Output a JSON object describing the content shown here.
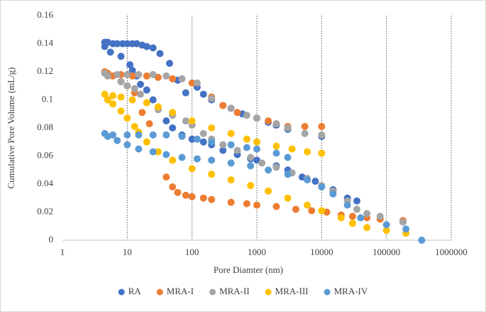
{
  "chart_data": {
    "type": "scatter",
    "x_label": "Pore Diamter (nm)",
    "y_label": "Cumulative Pore Volume (mL/g)",
    "xlim": [
      1,
      1000000
    ],
    "xticks": [
      1,
      10,
      100,
      1000,
      10000,
      100000,
      1000000
    ],
    "log_x": true,
    "xgrid": true,
    "ylim": [
      0,
      0.16
    ],
    "yticks": [
      0,
      0.02,
      0.04,
      0.06,
      0.08,
      0.1,
      0.12,
      0.14,
      0.16
    ],
    "legend": "bottom",
    "series": [
      {
        "name": "RA",
        "color": "#4472c4",
        "x": [
          4.5,
          5,
          6,
          7,
          8.5,
          10,
          12,
          14,
          17,
          20,
          25,
          32,
          45,
          60,
          80,
          120,
          150,
          200,
          300,
          400,
          600,
          1000,
          1500,
          2000,
          3000,
          10000,
          4.5,
          5.5,
          8,
          11,
          12,
          14,
          16,
          20,
          25,
          30,
          40,
          50,
          70,
          100,
          150,
          200,
          300,
          500,
          800,
          1000,
          2000,
          3000,
          5000,
          8000,
          15000,
          25000,
          35000
        ],
        "values": [
          0.141,
          0.141,
          0.14,
          0.14,
          0.14,
          0.14,
          0.14,
          0.14,
          0.139,
          0.138,
          0.137,
          0.133,
          0.126,
          0.114,
          0.105,
          0.109,
          0.104,
          0.1,
          0.096,
          0.094,
          0.09,
          0.087,
          0.084,
          0.082,
          0.079,
          0.074,
          0.138,
          0.134,
          0.131,
          0.125,
          0.121,
          0.117,
          0.111,
          0.107,
          0.1,
          0.094,
          0.085,
          0.08,
          0.075,
          0.072,
          0.07,
          0.068,
          0.064,
          0.061,
          0.058,
          0.057,
          0.053,
          0.05,
          0.045,
          0.042,
          0.036,
          0.03,
          0.028
        ]
      },
      {
        "name": "MRA-I",
        "color": "#ed7d31",
        "x": [
          4.5,
          6,
          8,
          10,
          13,
          17,
          22,
          40,
          50,
          60,
          80,
          100,
          150,
          200,
          400,
          700,
          1000,
          2000,
          4000,
          7000,
          12000,
          20000,
          30000,
          50000,
          80000,
          180000,
          5,
          8,
          12,
          20,
          30,
          50,
          100,
          200,
          300,
          500,
          1000,
          1500,
          2000,
          3000,
          5500,
          10000
        ],
        "values": [
          0.12,
          0.117,
          0.113,
          0.11,
          0.105,
          0.091,
          0.083,
          0.045,
          0.038,
          0.034,
          0.032,
          0.031,
          0.03,
          0.029,
          0.027,
          0.026,
          0.025,
          0.024,
          0.022,
          0.021,
          0.02,
          0.018,
          0.017,
          0.016,
          0.015,
          0.014,
          0.119,
          0.118,
          0.117,
          0.117,
          0.116,
          0.115,
          0.112,
          0.102,
          0.096,
          0.091,
          0.087,
          0.085,
          0.083,
          0.081,
          0.081,
          0.081
        ]
      },
      {
        "name": "MRA-II",
        "color": "#a5a5a5",
        "x": [
          4.5,
          7,
          10,
          15,
          25,
          40,
          70,
          120,
          200,
          400,
          700,
          1000,
          2000,
          3000,
          5500,
          10000,
          5,
          8,
          10,
          13,
          16,
          20,
          30,
          50,
          80,
          100,
          150,
          200,
          300,
          500,
          800,
          1200,
          2000,
          3500,
          6000,
          10000,
          15000,
          25000,
          35000,
          50000,
          80000,
          180000
        ],
        "values": [
          0.119,
          0.118,
          0.118,
          0.118,
          0.118,
          0.117,
          0.115,
          0.112,
          0.101,
          0.094,
          0.089,
          0.087,
          0.083,
          0.08,
          0.076,
          0.075,
          0.117,
          0.113,
          0.11,
          0.108,
          0.104,
          0.098,
          0.093,
          0.089,
          0.085,
          0.082,
          0.076,
          0.072,
          0.068,
          0.064,
          0.059,
          0.055,
          0.052,
          0.048,
          0.044,
          0.039,
          0.035,
          0.028,
          0.022,
          0.019,
          0.017,
          0.013
        ]
      },
      {
        "name": "MRA-III",
        "color": "#ffc000",
        "x": [
          4.5,
          6,
          8,
          12,
          20,
          30,
          50,
          100,
          200,
          400,
          700,
          1000,
          2000,
          3500,
          6000,
          10000,
          5,
          6,
          8,
          10,
          13,
          15,
          20,
          30,
          50,
          100,
          200,
          400,
          800,
          1500,
          3000,
          6000,
          10000,
          20000,
          30000,
          50000,
          100000,
          200000
        ],
        "values": [
          0.104,
          0.103,
          0.102,
          0.1,
          0.098,
          0.095,
          0.091,
          0.085,
          0.08,
          0.076,
          0.072,
          0.07,
          0.067,
          0.065,
          0.063,
          0.062,
          0.1,
          0.097,
          0.092,
          0.087,
          0.081,
          0.077,
          0.07,
          0.063,
          0.057,
          0.051,
          0.047,
          0.043,
          0.039,
          0.035,
          0.03,
          0.025,
          0.021,
          0.016,
          0.012,
          0.009,
          0.007,
          0.005
        ]
      },
      {
        "name": "MRA-IV",
        "color": "#5b9bd5",
        "x": [
          4.5,
          6,
          10,
          15,
          25,
          40,
          70,
          120,
          200,
          400,
          700,
          1000,
          2000,
          3000,
          5,
          7,
          10,
          15,
          25,
          40,
          70,
          120,
          200,
          400,
          800,
          1500,
          3000,
          6000,
          10000,
          15000,
          25000,
          40000,
          100000,
          200000,
          350000
        ],
        "values": [
          0.076,
          0.075,
          0.075,
          0.075,
          0.075,
          0.075,
          0.074,
          0.072,
          0.07,
          0.068,
          0.066,
          0.065,
          0.062,
          0.059,
          0.074,
          0.071,
          0.068,
          0.065,
          0.063,
          0.061,
          0.059,
          0.058,
          0.057,
          0.055,
          0.053,
          0.05,
          0.047,
          0.043,
          0.038,
          0.033,
          0.025,
          0.016,
          0.011,
          0.008,
          0
        ]
      }
    ]
  }
}
